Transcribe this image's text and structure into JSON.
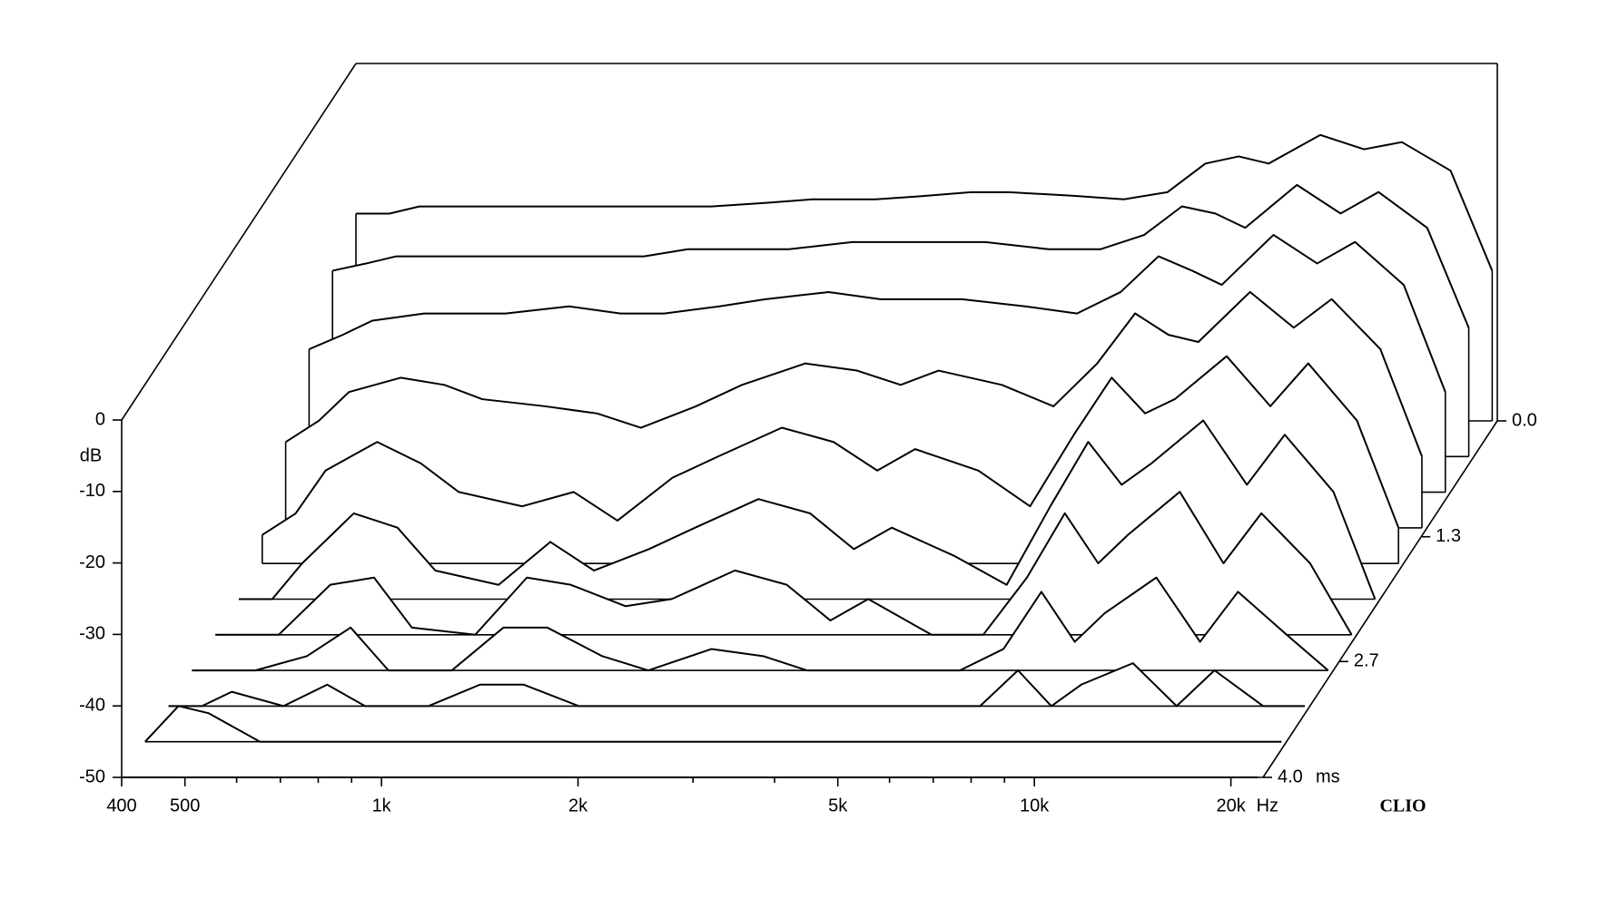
{
  "chart_data": {
    "type": "waterfall",
    "x": [
      400,
      450,
      500,
      600,
      700,
      800,
      1000,
      1200,
      1400,
      1700,
      2000,
      2500,
      3000,
      3500,
      4000,
      5000,
      6000,
      7000,
      8000,
      9000,
      10000,
      12000,
      14000,
      16000,
      19000,
      22000
    ],
    "xlim": [
      400,
      22400
    ],
    "log_x": true,
    "xticks": [
      400,
      500,
      {
        "value": 1000,
        "label": "1k"
      },
      {
        "value": 2000,
        "label": "2k"
      },
      {
        "value": 5000,
        "label": "5k"
      },
      {
        "value": 10000,
        "label": "10k"
      },
      {
        "value": 20000,
        "label": "20k"
      }
    ],
    "xminor": [
      600,
      700,
      800,
      900,
      3000,
      4000,
      6000,
      7000,
      8000,
      9000
    ],
    "x_unit": "Hz",
    "ylim": [
      -50,
      0
    ],
    "yticks": [
      0,
      -10,
      -20,
      -30,
      -40,
      -50
    ],
    "y_label": "dB",
    "zlim": [
      0,
      4.0
    ],
    "zticks": [
      {
        "value": 0,
        "label": "0.0"
      },
      {
        "value": 1.3,
        "label": "1.3"
      },
      {
        "value": 2.7,
        "label": "2.7"
      },
      {
        "value": 4.0,
        "label": "4.0"
      }
    ],
    "z_unit": "ms",
    "color": "#000000",
    "brand": "CLIO",
    "slices": [
      {
        "time": 0.0,
        "values": [
          -21,
          -21,
          -20,
          -20,
          -20,
          -20,
          -20,
          -20,
          -20,
          -19.5,
          -19,
          -19,
          -18.5,
          -18,
          -18,
          -18.5,
          -19,
          -18,
          -14,
          -13,
          -14,
          -10,
          -12,
          -11,
          -15,
          -29
        ]
      },
      {
        "time": 0.4,
        "values": [
          -24,
          -23,
          -22,
          -22,
          -22,
          -22,
          -22,
          -22,
          -21,
          -21,
          -21,
          -20,
          -20,
          -20,
          -20,
          -21,
          -21,
          -19,
          -15,
          -16,
          -18,
          -12,
          -16,
          -13,
          -18,
          -32
        ]
      },
      {
        "time": 0.8,
        "values": [
          -30,
          -28,
          -26,
          -25,
          -25,
          -25,
          -24,
          -25,
          -25,
          -24,
          -23,
          -22,
          -23,
          -23,
          -23,
          -24,
          -25,
          -22,
          -17,
          -19,
          -21,
          -14,
          -18,
          -15,
          -21,
          -36
        ]
      },
      {
        "time": 1.2,
        "values": [
          -38,
          -35,
          -31,
          -29,
          -30,
          -32,
          -33,
          -34,
          -36,
          -33,
          -30,
          -27,
          -28,
          -30,
          -28,
          -30,
          -33,
          -27,
          -20,
          -23,
          -24,
          -17,
          -22,
          -18,
          -25,
          -40
        ]
      },
      {
        "time": 1.6,
        "values": [
          -46,
          -43,
          -37,
          -33,
          -36,
          -40,
          -42,
          -40,
          -44,
          -38,
          -35,
          -31,
          -33,
          -37,
          -34,
          -37,
          -42,
          -32,
          -24,
          -29,
          -27,
          -21,
          -28,
          -22,
          -30,
          -45
        ]
      },
      {
        "time": 2.0,
        "values": [
          -50,
          -50,
          -45,
          -38,
          -40,
          -46,
          -48,
          -42,
          -46,
          -43,
          -40,
          -36,
          -38,
          -43,
          -40,
          -44,
          -48,
          -37,
          -28,
          -34,
          -31,
          -25,
          -34,
          -27,
          -35,
          -50
        ]
      },
      {
        "time": 2.4,
        "values": [
          -50,
          -50,
          -50,
          -43,
          -42,
          -49,
          -50,
          -42,
          -43,
          -46,
          -45,
          -41,
          -43,
          -48,
          -45,
          -50,
          -50,
          -42,
          -33,
          -40,
          -36,
          -30,
          -40,
          -33,
          -40,
          -50
        ]
      },
      {
        "time": 2.8,
        "values": [
          -50,
          -50,
          -50,
          -48,
          -44,
          -50,
          -50,
          -44,
          -44,
          -48,
          -50,
          -47,
          -48,
          -50,
          -50,
          -50,
          -50,
          -47,
          -39,
          -46,
          -42,
          -37,
          -46,
          -39,
          -45,
          -50
        ]
      },
      {
        "time": 3.2,
        "values": [
          -50,
          -50,
          -48,
          -50,
          -47,
          -50,
          -50,
          -47,
          -47,
          -50,
          -50,
          -50,
          -50,
          -50,
          -50,
          -50,
          -50,
          -50,
          -45,
          -50,
          -47,
          -44,
          -50,
          -45,
          -50,
          -50
        ]
      },
      {
        "time": 3.6,
        "values": [
          -50,
          -45,
          -46,
          -50,
          -50,
          -50,
          -50,
          -50,
          -50,
          -50,
          -50,
          -50,
          -50,
          -50,
          -50,
          -50,
          -50,
          -50,
          -50,
          -50,
          -50,
          -50,
          -50,
          -50,
          -50,
          -50
        ]
      },
      {
        "time": 4.0,
        "values": [
          -50,
          -50,
          -50,
          -50,
          -50,
          -50,
          -50,
          -50,
          -50,
          -50,
          -50,
          -50,
          -50,
          -50,
          -50,
          -50,
          -50,
          -50,
          -50,
          -50,
          -50,
          -50,
          -50,
          -50,
          -50,
          -50
        ]
      }
    ]
  }
}
